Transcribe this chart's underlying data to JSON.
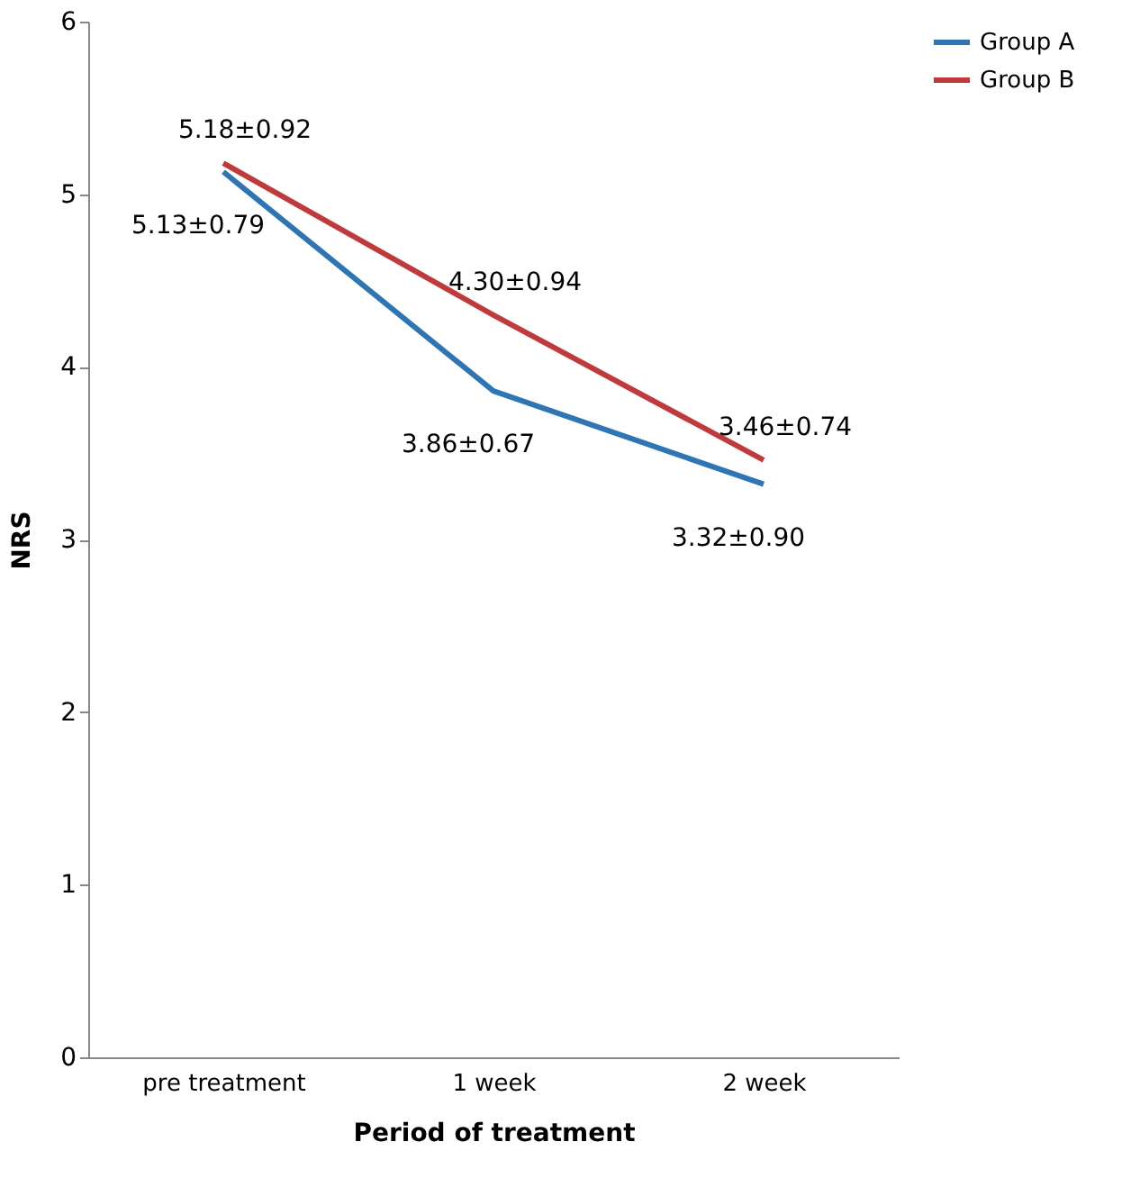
{
  "chart_data": {
    "type": "line",
    "xlabel": "Period of treatment",
    "ylabel": "NRS",
    "categories": [
      "pre treatment",
      "1 week",
      "2 week"
    ],
    "series": [
      {
        "name": "Group A",
        "color": "#2e75b6",
        "values": [
          5.13,
          3.86,
          3.32
        ],
        "value_labels": [
          "5.13±0.79",
          "3.86±0.67",
          "3.32±0.90"
        ]
      },
      {
        "name": "Group B",
        "color": "#c0393b",
        "values": [
          5.18,
          4.3,
          3.46
        ],
        "value_labels": [
          "5.18±0.92",
          "4.30±0.94",
          "3.46±0.74"
        ]
      }
    ],
    "ylim": [
      0,
      6
    ],
    "yticks": [
      0,
      1,
      2,
      3,
      4,
      5,
      6
    ],
    "grid": false,
    "legend": "top right",
    "marker": "none",
    "line_style": "solid"
  }
}
